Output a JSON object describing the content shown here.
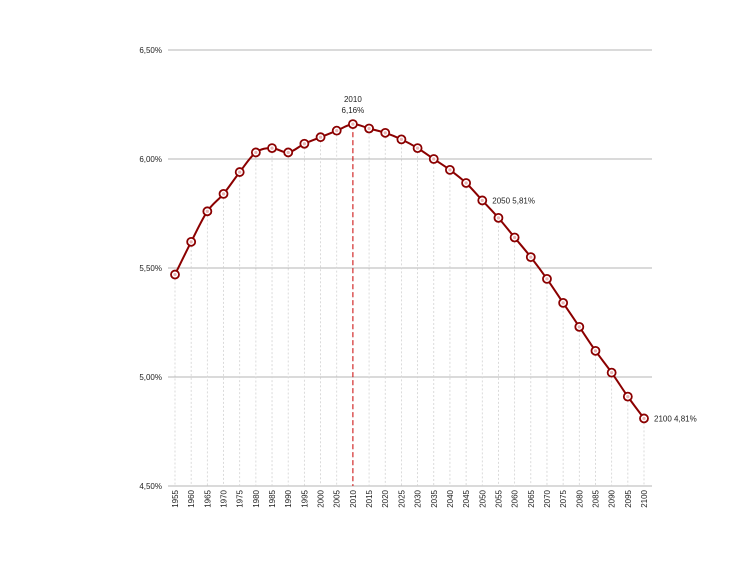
{
  "chart_data": {
    "type": "line",
    "title": "",
    "xlabel": "",
    "ylabel": "",
    "x": [
      1955,
      1960,
      1965,
      1970,
      1975,
      1980,
      1985,
      1990,
      1995,
      2000,
      2005,
      2010,
      2015,
      2020,
      2025,
      2030,
      2035,
      2040,
      2045,
      2050,
      2055,
      2060,
      2065,
      2070,
      2075,
      2080,
      2085,
      2090,
      2095,
      2100
    ],
    "x_tick_labels": [
      "1955",
      "1960",
      "1965",
      "1970",
      "1975",
      "1980",
      "1985",
      "1990",
      "1995",
      "2000",
      "2005",
      "2010",
      "2015",
      "2020",
      "2025",
      "2030",
      "2035",
      "2040",
      "2045",
      "2050",
      "2055",
      "2060",
      "2065",
      "2070",
      "2075",
      "2080",
      "2085",
      "2090",
      "2095",
      "2100"
    ],
    "series": [
      {
        "values": [
          5.47,
          5.62,
          5.76,
          5.84,
          5.94,
          6.03,
          6.05,
          6.03,
          6.07,
          6.1,
          6.13,
          6.16,
          6.14,
          6.12,
          6.09,
          6.05,
          6.0,
          5.95,
          5.89,
          5.81,
          5.73,
          5.64,
          5.55,
          5.45,
          5.34,
          5.23,
          5.12,
          5.02,
          4.91,
          4.81
        ],
        "color": "#8b0000"
      }
    ],
    "ylim": [
      4.5,
      6.5
    ],
    "y_ticks": [
      4.5,
      5.0,
      5.5,
      6.0,
      6.5
    ],
    "y_tick_labels": [
      "4,50%",
      "5,00%",
      "5,50%",
      "6,00%",
      "6,50%"
    ],
    "grid": true,
    "reference_line": {
      "x": 2010,
      "color": "#cc0000"
    },
    "annotations": [
      {
        "x": 2010,
        "y": 6.16,
        "year_text": "2010",
        "value_text": "6,16%"
      },
      {
        "x": 2050,
        "y": 5.81,
        "text": "2050 5,81%"
      },
      {
        "x": 2100,
        "y": 4.81,
        "text": "2100 4,81%"
      }
    ]
  }
}
